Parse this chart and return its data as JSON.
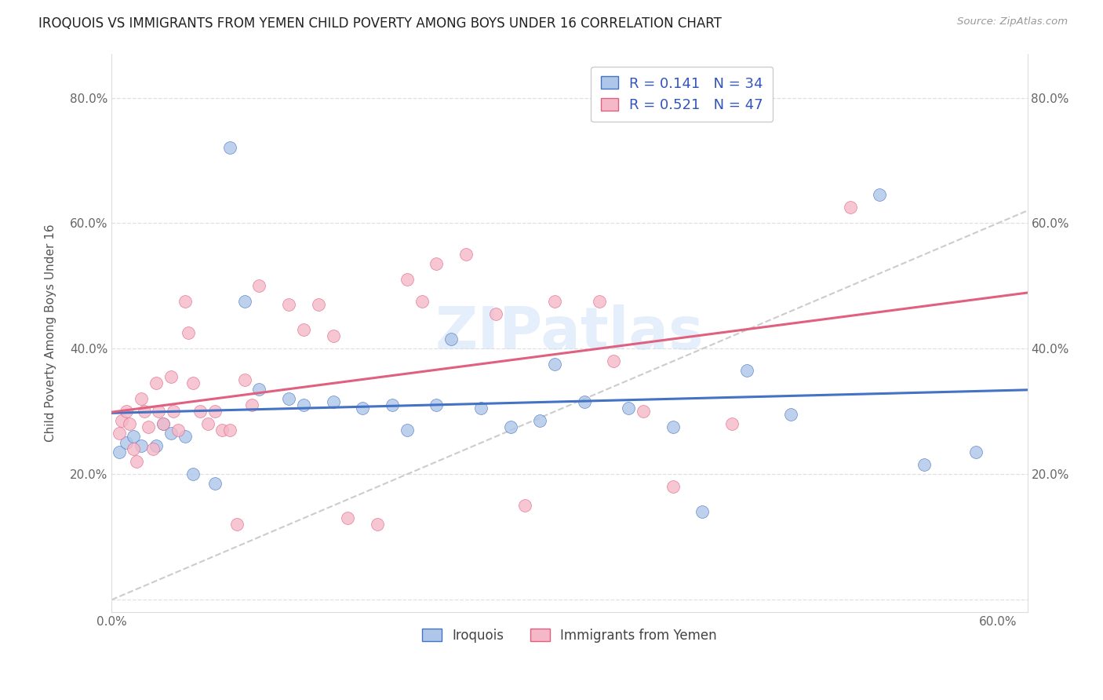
{
  "title": "IROQUOIS VS IMMIGRANTS FROM YEMEN CHILD POVERTY AMONG BOYS UNDER 16 CORRELATION CHART",
  "source": "Source: ZipAtlas.com",
  "ylabel": "Child Poverty Among Boys Under 16",
  "xlim": [
    0.0,
    0.62
  ],
  "ylim": [
    -0.02,
    0.87
  ],
  "xticks": [
    0.0,
    0.1,
    0.2,
    0.3,
    0.4,
    0.5,
    0.6
  ],
  "xtick_labels": [
    "0.0%",
    "",
    "",
    "",
    "",
    "",
    "60.0%"
  ],
  "yticks": [
    0.0,
    0.2,
    0.4,
    0.6,
    0.8
  ],
  "ytick_labels": [
    "",
    "20.0%",
    "40.0%",
    "60.0%",
    "80.0%"
  ],
  "legend_label1": "Iroquois",
  "legend_label2": "Immigrants from Yemen",
  "R1": 0.141,
  "N1": 34,
  "R2": 0.521,
  "N2": 47,
  "color1": "#aec6e8",
  "color2": "#f5b8c8",
  "trend_color1": "#4472c4",
  "trend_color2": "#e06080",
  "watermark": "ZIPatlas",
  "iroquois_x": [
    0.005,
    0.01,
    0.015,
    0.02,
    0.03,
    0.035,
    0.04,
    0.05,
    0.055,
    0.07,
    0.08,
    0.09,
    0.1,
    0.12,
    0.13,
    0.15,
    0.17,
    0.19,
    0.2,
    0.22,
    0.23,
    0.25,
    0.27,
    0.29,
    0.3,
    0.32,
    0.35,
    0.38,
    0.4,
    0.43,
    0.46,
    0.52,
    0.55,
    0.585
  ],
  "iroquois_y": [
    0.235,
    0.25,
    0.26,
    0.245,
    0.245,
    0.28,
    0.265,
    0.26,
    0.2,
    0.185,
    0.72,
    0.475,
    0.335,
    0.32,
    0.31,
    0.315,
    0.305,
    0.31,
    0.27,
    0.31,
    0.415,
    0.305,
    0.275,
    0.285,
    0.375,
    0.315,
    0.305,
    0.275,
    0.14,
    0.365,
    0.295,
    0.645,
    0.215,
    0.235
  ],
  "yemen_x": [
    0.005,
    0.007,
    0.01,
    0.012,
    0.015,
    0.017,
    0.02,
    0.022,
    0.025,
    0.028,
    0.03,
    0.032,
    0.035,
    0.04,
    0.042,
    0.045,
    0.05,
    0.052,
    0.055,
    0.06,
    0.065,
    0.07,
    0.075,
    0.08,
    0.085,
    0.09,
    0.095,
    0.1,
    0.12,
    0.13,
    0.14,
    0.15,
    0.16,
    0.18,
    0.2,
    0.21,
    0.22,
    0.24,
    0.26,
    0.28,
    0.3,
    0.33,
    0.34,
    0.36,
    0.38,
    0.42,
    0.5
  ],
  "yemen_y": [
    0.265,
    0.285,
    0.3,
    0.28,
    0.24,
    0.22,
    0.32,
    0.3,
    0.275,
    0.24,
    0.345,
    0.3,
    0.28,
    0.355,
    0.3,
    0.27,
    0.475,
    0.425,
    0.345,
    0.3,
    0.28,
    0.3,
    0.27,
    0.27,
    0.12,
    0.35,
    0.31,
    0.5,
    0.47,
    0.43,
    0.47,
    0.42,
    0.13,
    0.12,
    0.51,
    0.475,
    0.535,
    0.55,
    0.455,
    0.15,
    0.475,
    0.475,
    0.38,
    0.3,
    0.18,
    0.28,
    0.625
  ],
  "ref_line_x": [
    0.0,
    0.62
  ],
  "ref_line_y": [
    0.0,
    0.62
  ]
}
